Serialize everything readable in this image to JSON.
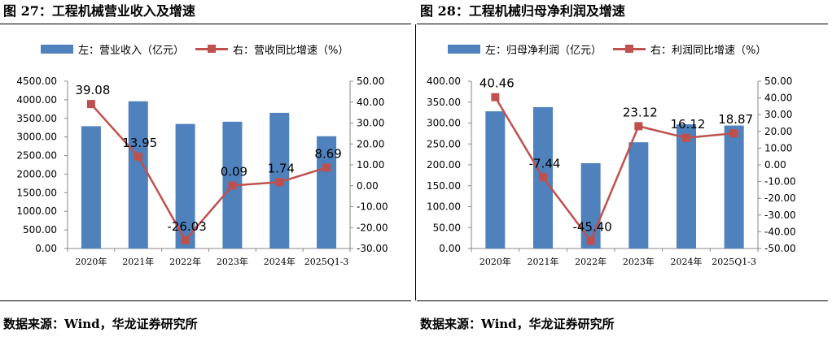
{
  "charts": [
    {
      "title": "图 27：工程机械营业收入及增速",
      "source": "数据来源：Wind，华龙证券研究所"
    },
    {
      "title": "图 28：工程机械归母净利润及增速",
      "source": "数据来源：Wind，华龙证券研究所"
    }
  ],
  "colors": {
    "bar": "#4f81bd",
    "line": "#c0504d"
  },
  "chart_data": [
    {
      "type": "bar",
      "categories": [
        "2020年",
        "2021年",
        "2022年",
        "2023年",
        "2024年",
        "2025Q1-3"
      ],
      "series": [
        {
          "name": "左：营业收入（亿元）",
          "type": "bar",
          "axis": "left",
          "values": [
            3290,
            3960,
            3350,
            3410,
            3650,
            3020
          ]
        },
        {
          "name": "右：营收同比增速（%）",
          "type": "line",
          "axis": "right",
          "values": [
            39.08,
            13.95,
            -26.03,
            0.09,
            1.74,
            8.69
          ]
        }
      ],
      "data_labels": [
        "39.08",
        "13.95",
        "-26.03",
        "0.09",
        "1.74",
        "8.69"
      ],
      "ylim_left": [
        0,
        4500
      ],
      "yticks_left_step": 500,
      "yticks_left": [
        "4500.00",
        "4000.00",
        "3500.00",
        "3000.00",
        "2500.00",
        "2000.00",
        "1500.00",
        "1000.00",
        "500.00",
        "0.00"
      ],
      "ylim_right": [
        -30,
        50
      ],
      "yticks_right_step": 10,
      "yticks_right": [
        "50.00",
        "40.00",
        "30.00",
        "20.00",
        "10.00",
        "0.00",
        "-10.00",
        "-20.00",
        "-30.00"
      ],
      "grid": false,
      "legend": "top"
    },
    {
      "type": "bar",
      "categories": [
        "2020年",
        "2021年",
        "2022年",
        "2023年",
        "2024年",
        "2025Q1-3"
      ],
      "series": [
        {
          "name": "左：归母净利润（亿元）",
          "type": "bar",
          "axis": "left",
          "values": [
            328,
            338,
            204,
            254,
            297,
            294
          ]
        },
        {
          "name": "右：利润同比增速（%）",
          "type": "line",
          "axis": "right",
          "values": [
            40.46,
            -7.44,
            -45.4,
            23.12,
            16.12,
            18.87
          ]
        }
      ],
      "data_labels": [
        "40.46",
        "-7.44",
        "-45.40",
        "23.12",
        "16.12",
        "18.87"
      ],
      "ylim_left": [
        0,
        400
      ],
      "yticks_left_step": 50,
      "yticks_left": [
        "400.00",
        "350.00",
        "300.00",
        "250.00",
        "200.00",
        "150.00",
        "100.00",
        "50.00",
        "0.00"
      ],
      "ylim_right": [
        -50,
        50
      ],
      "yticks_right_step": 10,
      "yticks_right": [
        "50.00",
        "40.00",
        "30.00",
        "20.00",
        "10.00",
        "0.00",
        "-10.00",
        "-20.00",
        "-30.00",
        "-40.00",
        "-50.00"
      ],
      "grid": false,
      "legend": "top"
    }
  ]
}
